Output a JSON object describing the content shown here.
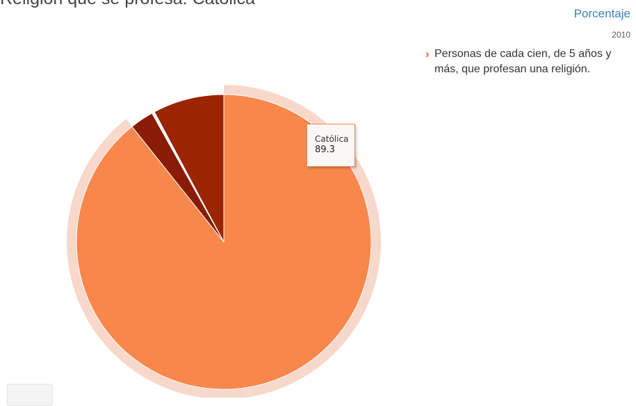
{
  "header": {
    "title": "Religión que se profesa: Católica",
    "unit": "Porcentaje",
    "year": "2010"
  },
  "note": {
    "text": "Personas de cada cien, de 5 años y más, que profesan una religión."
  },
  "tooltip": {
    "category": "Católica",
    "value": "89.3"
  },
  "colors": {
    "catolica": "#f8874b",
    "otra_1": "#8a1b05",
    "otra_2": "#9a2500",
    "divider": "#ffffff",
    "halo": "#f8d8ca",
    "accent": "#e8633a",
    "link": "#3a7fc1"
  },
  "chart_data": {
    "type": "pie",
    "year": "2010",
    "unit": "Porcentaje",
    "highlighted": "Católica",
    "slices": [
      {
        "label": "Católica",
        "value": 89.3
      },
      {
        "label": "",
        "value": 2.6
      },
      {
        "label": "",
        "value": 0.3
      },
      {
        "label": "",
        "value": 7.8
      }
    ]
  }
}
